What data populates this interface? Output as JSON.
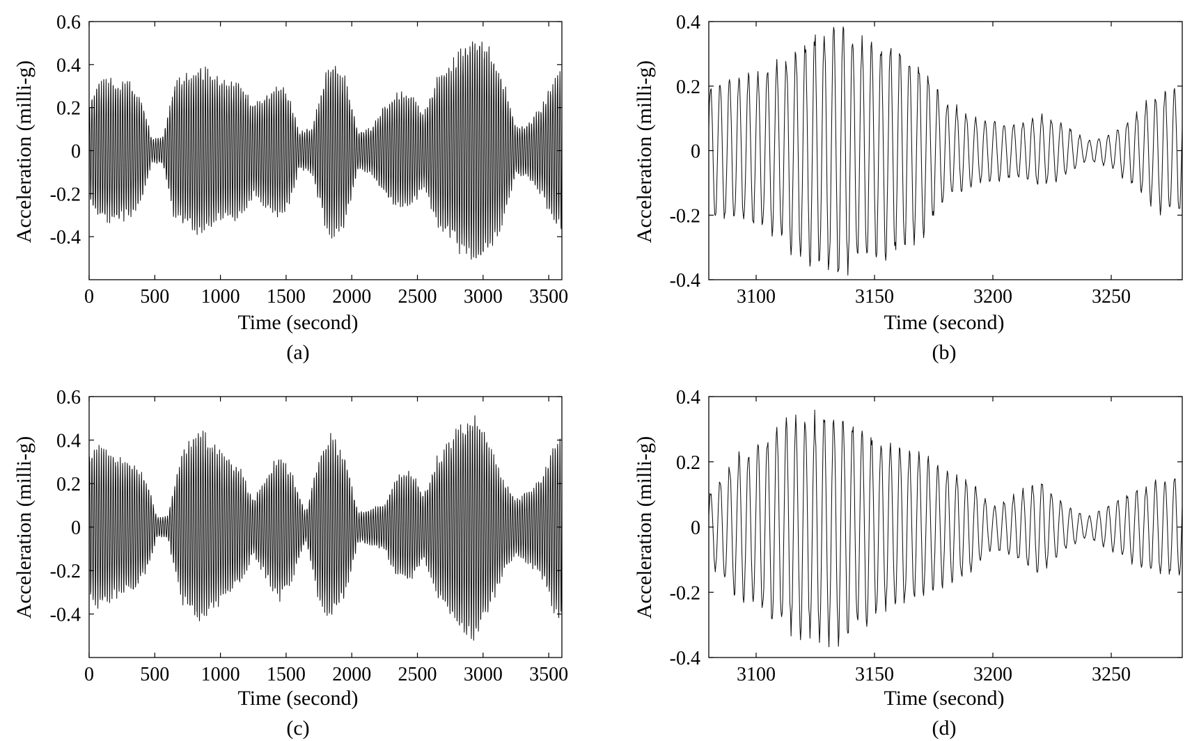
{
  "chart_data": [
    {
      "type": "line",
      "panel": "(a)",
      "xlabel": "Time (second)",
      "ylabel": "Acceleration (milli-g)",
      "xlim": [
        0,
        3600
      ],
      "ylim": [
        -0.6,
        0.6
      ],
      "xticks": [
        "0",
        "500",
        "1000",
        "1500",
        "2000",
        "2500",
        "3000",
        "3500"
      ],
      "yticks": [
        "0.6",
        "0.4",
        "0.2",
        "0",
        "-0.2",
        "-0.4"
      ],
      "period_s": 18,
      "series": [
        {
          "envelope_x": [
            0,
            60,
            150,
            300,
            400,
            480,
            560,
            650,
            750,
            850,
            950,
            1050,
            1150,
            1250,
            1350,
            1480,
            1540,
            1600,
            1700,
            1800,
            1850,
            1950,
            2050,
            2150,
            2250,
            2350,
            2450,
            2550,
            2650,
            2750,
            2850,
            2950,
            3050,
            3150,
            3250,
            3350,
            3450,
            3550,
            3600
          ],
          "envelope_y": [
            0.2,
            0.3,
            0.31,
            0.3,
            0.22,
            0.05,
            0.06,
            0.3,
            0.33,
            0.37,
            0.33,
            0.3,
            0.3,
            0.2,
            0.25,
            0.3,
            0.2,
            0.08,
            0.1,
            0.34,
            0.38,
            0.32,
            0.08,
            0.1,
            0.2,
            0.25,
            0.25,
            0.16,
            0.32,
            0.38,
            0.46,
            0.5,
            0.44,
            0.32,
            0.1,
            0.12,
            0.2,
            0.33,
            0.35
          ]
        }
      ]
    },
    {
      "type": "line",
      "panel": "(b)",
      "xlabel": "Time (second)",
      "ylabel": "Acceleration (milli-g)",
      "xlim": [
        3080,
        3280
      ],
      "ylim": [
        -0.4,
        0.4
      ],
      "xticks": [
        "3100",
        "3150",
        "3200",
        "3250"
      ],
      "yticks": [
        "0.4",
        "0.2",
        "0",
        "-0.2",
        "-0.4"
      ],
      "period_s": 4,
      "series": [
        {
          "envelope_x": [
            3080,
            3090,
            3100,
            3110,
            3120,
            3130,
            3135,
            3140,
            3150,
            3160,
            3170,
            3180,
            3190,
            3200,
            3210,
            3220,
            3230,
            3240,
            3250,
            3260,
            3270,
            3280
          ],
          "envelope_y": [
            0.2,
            0.22,
            0.23,
            0.27,
            0.33,
            0.38,
            0.38,
            0.36,
            0.32,
            0.31,
            0.26,
            0.15,
            0.11,
            0.09,
            0.08,
            0.11,
            0.08,
            0.03,
            0.05,
            0.11,
            0.18,
            0.2
          ]
        }
      ]
    },
    {
      "type": "line",
      "panel": "(c)",
      "xlabel": "Time (second)",
      "ylabel": "Acceleration (milli-g)",
      "xlim": [
        0,
        3600
      ],
      "ylim": [
        -0.6,
        0.6
      ],
      "xticks": [
        "0",
        "500",
        "1000",
        "1500",
        "2000",
        "2500",
        "3000",
        "3500"
      ],
      "yticks": [
        "0.6",
        "0.4",
        "0.2",
        "0",
        "-0.2",
        "-0.4"
      ],
      "period_s": 18,
      "series": [
        {
          "envelope_x": [
            0,
            100,
            200,
            350,
            450,
            520,
            600,
            700,
            800,
            850,
            950,
            1050,
            1150,
            1250,
            1350,
            1450,
            1550,
            1650,
            1750,
            1800,
            1850,
            1950,
            2050,
            2150,
            2250,
            2350,
            2450,
            2550,
            2650,
            2750,
            2850,
            2950,
            3050,
            3150,
            3250,
            3350,
            3450,
            3550,
            3600
          ],
          "envelope_y": [
            0.32,
            0.35,
            0.3,
            0.28,
            0.18,
            0.04,
            0.05,
            0.32,
            0.4,
            0.42,
            0.35,
            0.3,
            0.25,
            0.12,
            0.22,
            0.32,
            0.22,
            0.06,
            0.32,
            0.38,
            0.4,
            0.3,
            0.06,
            0.08,
            0.1,
            0.22,
            0.24,
            0.14,
            0.3,
            0.38,
            0.46,
            0.48,
            0.36,
            0.2,
            0.12,
            0.16,
            0.22,
            0.38,
            0.38
          ]
        }
      ]
    },
    {
      "type": "line",
      "panel": "(d)",
      "xlabel": "Time (second)",
      "ylabel": "Acceleration (milli-g)",
      "xlim": [
        3080,
        3280
      ],
      "ylim": [
        -0.4,
        0.4
      ],
      "xticks": [
        "3100",
        "3150",
        "3200",
        "3250"
      ],
      "yticks": [
        "0.4",
        "0.2",
        "0",
        "-0.2",
        "-0.4"
      ],
      "period_s": 4,
      "series": [
        {
          "envelope_x": [
            3080,
            3090,
            3100,
            3110,
            3120,
            3130,
            3135,
            3140,
            3150,
            3160,
            3170,
            3180,
            3190,
            3200,
            3210,
            3220,
            3230,
            3240,
            3250,
            3260,
            3270,
            3280
          ],
          "envelope_y": [
            0.1,
            0.2,
            0.24,
            0.3,
            0.32,
            0.34,
            0.34,
            0.32,
            0.27,
            0.24,
            0.21,
            0.17,
            0.14,
            0.06,
            0.1,
            0.14,
            0.07,
            0.03,
            0.07,
            0.11,
            0.14,
            0.15
          ]
        }
      ]
    }
  ]
}
